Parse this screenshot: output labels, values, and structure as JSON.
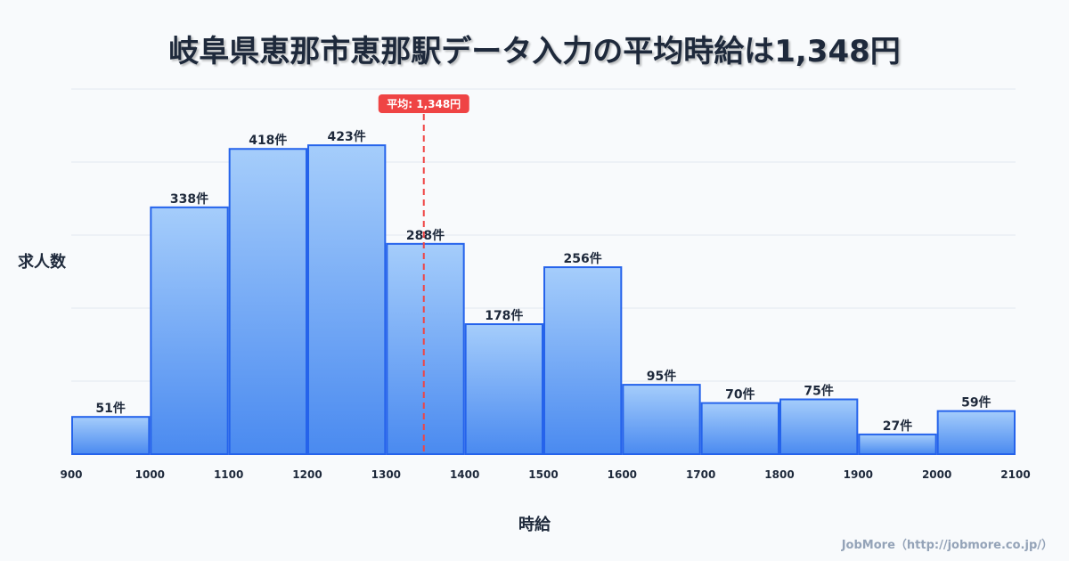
{
  "chart_data": {
    "type": "bar",
    "title": "岐阜県恵那市恵那駅データ入力の平均時給は1,348円",
    "xlabel": "時給",
    "ylabel": "求人数",
    "bin_edges": [
      900,
      1000,
      1100,
      1200,
      1300,
      1400,
      1500,
      1600,
      1700,
      1800,
      1900,
      2000,
      2100
    ],
    "x_tick_labels": [
      "900",
      "1000",
      "1100",
      "1200",
      "1300",
      "1400",
      "1500",
      "1600",
      "1700",
      "1800",
      "1900",
      "2000",
      "2100"
    ],
    "values": [
      51,
      338,
      418,
      423,
      288,
      178,
      256,
      95,
      70,
      75,
      27,
      59
    ],
    "value_labels": [
      "51件",
      "338件",
      "418件",
      "423件",
      "288件",
      "178件",
      "256件",
      "95件",
      "70件",
      "75件",
      "27件",
      "59件"
    ],
    "ylim": [
      0,
      500
    ],
    "xlim": [
      900,
      2100
    ],
    "grid": true,
    "mean": 1348,
    "mean_label": "平均: 1,348円",
    "colors": {
      "bar_top": "#a5cdfb",
      "bar_bottom": "#4a8af0",
      "bar_stroke": "#2563eb",
      "mean": "#ef4444"
    }
  },
  "credit": "JobMore（http://jobmore.co.jp/）"
}
